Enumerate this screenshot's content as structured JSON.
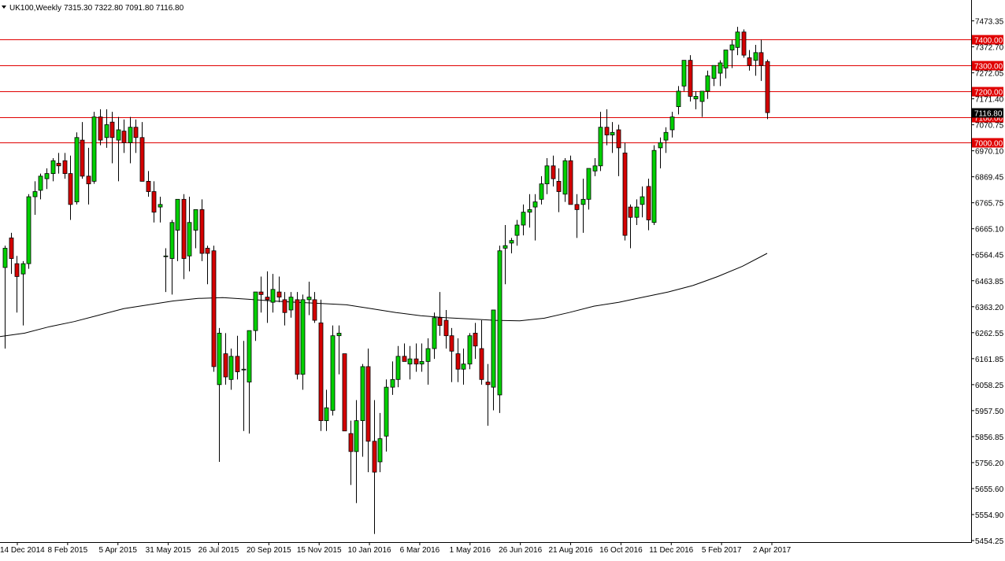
{
  "header": {
    "symbol_label": "UK100,Weekly",
    "ohlc_text": "7315.30 7322.80 7091.80 7116.80"
  },
  "colors": {
    "up_fill": "#00d000",
    "down_fill": "#d40000",
    "level_line": "#e00000",
    "moving_average": "#000000",
    "candle_outline": "#000000"
  },
  "chart_data": {
    "type": "candlestick",
    "title": "UK100,Weekly",
    "ylim": [
      5454.25,
      7522.3
    ],
    "grid": false,
    "price_ticks": [
      "7473.35",
      "7372.70",
      "7272.05",
      "7171.40",
      "7070.75",
      "6970.10",
      "6869.45",
      "6765.75",
      "6665.10",
      "6564.45",
      "6463.85",
      "6363.20",
      "6262.55",
      "6161.85",
      "6058.25",
      "5957.50",
      "5856.85",
      "5756.20",
      "5655.60",
      "5554.90",
      "5454.25"
    ],
    "date_ticks": [
      "14 Dec 2014",
      "8 Feb 2015",
      "5 Apr 2015",
      "31 May 2015",
      "26 Jul 2015",
      "20 Sep 2015",
      "15 Nov 2015",
      "10 Jan 2016",
      "6 Mar 2016",
      "1 May 2016",
      "26 Jun 2016",
      "21 Aug 2016",
      "16 Oct 2016",
      "11 Dec 2016",
      "5 Feb 2017",
      "2 Apr 2017"
    ],
    "levels": [
      {
        "label": "7400.00",
        "value": 7400
      },
      {
        "label": "7300.00",
        "value": 7300
      },
      {
        "label": "7200.00",
        "value": 7200
      },
      {
        "label": "7100.00",
        "value": 7100
      },
      {
        "label": "7000.00",
        "value": 7000
      }
    ],
    "current_price_label": "7116.80",
    "moving_average": [
      6247,
      6260,
      6285,
      6305,
      6330,
      6355,
      6370,
      6385,
      6395,
      6398,
      6392,
      6385,
      6380,
      6375,
      6370,
      6355,
      6340,
      6328,
      6320,
      6315,
      6310,
      6308,
      6318,
      6340,
      6365,
      6380,
      6400,
      6420,
      6445,
      6480,
      6520,
      6570
    ],
    "candles": [
      {
        "o": 6515,
        "h": 6600,
        "l": 6200,
        "c": 6590
      },
      {
        "o": 6630,
        "h": 6650,
        "l": 6490,
        "c": 6550
      },
      {
        "o": 6530,
        "h": 6560,
        "l": 6340,
        "c": 6480
      },
      {
        "o": 6490,
        "h": 6540,
        "l": 6290,
        "c": 6530
      },
      {
        "o": 6530,
        "h": 6800,
        "l": 6510,
        "c": 6790
      },
      {
        "o": 6790,
        "h": 6850,
        "l": 6720,
        "c": 6810
      },
      {
        "o": 6815,
        "h": 6880,
        "l": 6780,
        "c": 6870
      },
      {
        "o": 6860,
        "h": 6900,
        "l": 6820,
        "c": 6880
      },
      {
        "o": 6880,
        "h": 6940,
        "l": 6850,
        "c": 6930
      },
      {
        "o": 6920,
        "h": 6960,
        "l": 6880,
        "c": 6910
      },
      {
        "o": 6930,
        "h": 6960,
        "l": 6860,
        "c": 6880
      },
      {
        "o": 6880,
        "h": 6950,
        "l": 6700,
        "c": 6760
      },
      {
        "o": 6770,
        "h": 7040,
        "l": 6760,
        "c": 7020
      },
      {
        "o": 7010,
        "h": 7080,
        "l": 6860,
        "c": 6870
      },
      {
        "o": 6870,
        "h": 6980,
        "l": 6760,
        "c": 6840
      },
      {
        "o": 6850,
        "h": 7120,
        "l": 6840,
        "c": 7100
      },
      {
        "o": 7100,
        "h": 7130,
        "l": 6990,
        "c": 7010
      },
      {
        "o": 7020,
        "h": 7130,
        "l": 6980,
        "c": 7070
      },
      {
        "o": 7080,
        "h": 7120,
        "l": 6920,
        "c": 7020
      },
      {
        "o": 7010,
        "h": 7100,
        "l": 6850,
        "c": 7050
      },
      {
        "o": 7045,
        "h": 7090,
        "l": 6960,
        "c": 7000
      },
      {
        "o": 7000,
        "h": 7100,
        "l": 6920,
        "c": 7060
      },
      {
        "o": 7060,
        "h": 7090,
        "l": 6960,
        "c": 7020
      },
      {
        "o": 7020,
        "h": 7080,
        "l": 6850,
        "c": 6850
      },
      {
        "o": 6850,
        "h": 6890,
        "l": 6790,
        "c": 6810
      },
      {
        "o": 6810,
        "h": 6850,
        "l": 6690,
        "c": 6730
      },
      {
        "o": 6750,
        "h": 6790,
        "l": 6690,
        "c": 6760
      },
      {
        "o": 6560,
        "h": 6590,
        "l": 6420,
        "c": 6560
      },
      {
        "o": 6550,
        "h": 6700,
        "l": 6410,
        "c": 6690
      },
      {
        "o": 6660,
        "h": 6770,
        "l": 6540,
        "c": 6780
      },
      {
        "o": 6780,
        "h": 6800,
        "l": 6470,
        "c": 6550
      },
      {
        "o": 6560,
        "h": 6790,
        "l": 6500,
        "c": 6690
      },
      {
        "o": 6660,
        "h": 6740,
        "l": 6590,
        "c": 6740
      },
      {
        "o": 6740,
        "h": 6780,
        "l": 6540,
        "c": 6570
      },
      {
        "o": 6590,
        "h": 6600,
        "l": 6450,
        "c": 6570
      },
      {
        "o": 6580,
        "h": 6600,
        "l": 6110,
        "c": 6130
      },
      {
        "o": 6060,
        "h": 6280,
        "l": 5760,
        "c": 6260
      },
      {
        "o": 6180,
        "h": 6260,
        "l": 6060,
        "c": 6090
      },
      {
        "o": 6080,
        "h": 6200,
        "l": 6040,
        "c": 6170
      },
      {
        "o": 6170,
        "h": 6250,
        "l": 6080,
        "c": 6110
      },
      {
        "o": 6120,
        "h": 6230,
        "l": 5880,
        "c": 6120
      },
      {
        "o": 6070,
        "h": 6270,
        "l": 5870,
        "c": 6270
      },
      {
        "o": 6270,
        "h": 6420,
        "l": 6230,
        "c": 6420
      },
      {
        "o": 6420,
        "h": 6480,
        "l": 6340,
        "c": 6410
      },
      {
        "o": 6400,
        "h": 6500,
        "l": 6300,
        "c": 6390
      },
      {
        "o": 6380,
        "h": 6490,
        "l": 6340,
        "c": 6430
      },
      {
        "o": 6420,
        "h": 6480,
        "l": 6380,
        "c": 6400
      },
      {
        "o": 6390,
        "h": 6420,
        "l": 6290,
        "c": 6340
      },
      {
        "o": 6350,
        "h": 6420,
        "l": 6320,
        "c": 6400
      },
      {
        "o": 6390,
        "h": 6420,
        "l": 6080,
        "c": 6100
      },
      {
        "o": 6100,
        "h": 6410,
        "l": 6040,
        "c": 6390
      },
      {
        "o": 6390,
        "h": 6460,
        "l": 6330,
        "c": 6400
      },
      {
        "o": 6390,
        "h": 6420,
        "l": 6300,
        "c": 6310
      },
      {
        "o": 6300,
        "h": 6390,
        "l": 5880,
        "c": 5920
      },
      {
        "o": 5920,
        "h": 6040,
        "l": 5880,
        "c": 5970
      },
      {
        "o": 5960,
        "h": 6290,
        "l": 5940,
        "c": 6250
      },
      {
        "o": 6250,
        "h": 6290,
        "l": 6100,
        "c": 6260
      },
      {
        "o": 6180,
        "h": 6180,
        "l": 5880,
        "c": 5880
      },
      {
        "o": 5870,
        "h": 5920,
        "l": 5670,
        "c": 5800
      },
      {
        "o": 5800,
        "h": 6000,
        "l": 5600,
        "c": 5920
      },
      {
        "o": 5920,
        "h": 6140,
        "l": 5780,
        "c": 6130
      },
      {
        "o": 6130,
        "h": 6200,
        "l": 5720,
        "c": 5840
      },
      {
        "o": 5840,
        "h": 6000,
        "l": 5480,
        "c": 5720
      },
      {
        "o": 5760,
        "h": 5950,
        "l": 5720,
        "c": 5850
      },
      {
        "o": 5860,
        "h": 6080,
        "l": 5800,
        "c": 6050
      },
      {
        "o": 6050,
        "h": 6150,
        "l": 6020,
        "c": 6080
      },
      {
        "o": 6080,
        "h": 6210,
        "l": 6050,
        "c": 6170
      },
      {
        "o": 6170,
        "h": 6220,
        "l": 6150,
        "c": 6150
      },
      {
        "o": 6140,
        "h": 6210,
        "l": 6080,
        "c": 6160
      },
      {
        "o": 6160,
        "h": 6220,
        "l": 6110,
        "c": 6140
      },
      {
        "o": 6140,
        "h": 6220,
        "l": 6110,
        "c": 6150
      },
      {
        "o": 6150,
        "h": 6240,
        "l": 6060,
        "c": 6200
      },
      {
        "o": 6200,
        "h": 6340,
        "l": 6160,
        "c": 6320
      },
      {
        "o": 6320,
        "h": 6420,
        "l": 6250,
        "c": 6290
      },
      {
        "o": 6310,
        "h": 6350,
        "l": 6200,
        "c": 6250
      },
      {
        "o": 6250,
        "h": 6280,
        "l": 6070,
        "c": 6190
      },
      {
        "o": 6180,
        "h": 6240,
        "l": 6070,
        "c": 6120
      },
      {
        "o": 6120,
        "h": 6200,
        "l": 6060,
        "c": 6140
      },
      {
        "o": 6140,
        "h": 6260,
        "l": 6120,
        "c": 6250
      },
      {
        "o": 6260,
        "h": 6300,
        "l": 6160,
        "c": 6210
      },
      {
        "o": 6200,
        "h": 6310,
        "l": 6060,
        "c": 6080
      },
      {
        "o": 6070,
        "h": 6140,
        "l": 5900,
        "c": 6060
      },
      {
        "o": 6050,
        "h": 6330,
        "l": 5960,
        "c": 6350
      },
      {
        "o": 6020,
        "h": 6600,
        "l": 5950,
        "c": 6580
      },
      {
        "o": 6590,
        "h": 6680,
        "l": 6450,
        "c": 6600
      },
      {
        "o": 6610,
        "h": 6630,
        "l": 6570,
        "c": 6620
      },
      {
        "o": 6640,
        "h": 6700,
        "l": 6600,
        "c": 6680
      },
      {
        "o": 6680,
        "h": 6760,
        "l": 6640,
        "c": 6730
      },
      {
        "o": 6730,
        "h": 6800,
        "l": 6670,
        "c": 6740
      },
      {
        "o": 6750,
        "h": 6800,
        "l": 6620,
        "c": 6770
      },
      {
        "o": 6780,
        "h": 6870,
        "l": 6760,
        "c": 6840
      },
      {
        "o": 6840,
        "h": 6940,
        "l": 6800,
        "c": 6910
      },
      {
        "o": 6910,
        "h": 6950,
        "l": 6830,
        "c": 6860
      },
      {
        "o": 6850,
        "h": 6900,
        "l": 6730,
        "c": 6810
      },
      {
        "o": 6800,
        "h": 6940,
        "l": 6770,
        "c": 6930
      },
      {
        "o": 6930,
        "h": 6950,
        "l": 6760,
        "c": 6760
      },
      {
        "o": 6760,
        "h": 6800,
        "l": 6630,
        "c": 6740
      },
      {
        "o": 6760,
        "h": 6860,
        "l": 6650,
        "c": 6780
      },
      {
        "o": 6780,
        "h": 6900,
        "l": 6740,
        "c": 6900
      },
      {
        "o": 6890,
        "h": 6940,
        "l": 6870,
        "c": 6910
      },
      {
        "o": 6910,
        "h": 7120,
        "l": 6890,
        "c": 7060
      },
      {
        "o": 7060,
        "h": 7130,
        "l": 6990,
        "c": 7030
      },
      {
        "o": 7030,
        "h": 7080,
        "l": 6960,
        "c": 7040
      },
      {
        "o": 7050,
        "h": 7070,
        "l": 6870,
        "c": 6980
      },
      {
        "o": 6960,
        "h": 7000,
        "l": 6620,
        "c": 6640
      },
      {
        "o": 6750,
        "h": 6760,
        "l": 6590,
        "c": 6710
      },
      {
        "o": 6710,
        "h": 6780,
        "l": 6680,
        "c": 6750
      },
      {
        "o": 6760,
        "h": 6830,
        "l": 6710,
        "c": 6790
      },
      {
        "o": 6830,
        "h": 6860,
        "l": 6660,
        "c": 6700
      },
      {
        "o": 6690,
        "h": 6990,
        "l": 6680,
        "c": 6970
      },
      {
        "o": 6980,
        "h": 7020,
        "l": 6900,
        "c": 7000
      },
      {
        "o": 7010,
        "h": 7060,
        "l": 6960,
        "c": 7040
      },
      {
        "o": 7050,
        "h": 7120,
        "l": 7020,
        "c": 7100
      },
      {
        "o": 7140,
        "h": 7220,
        "l": 7110,
        "c": 7200
      },
      {
        "o": 7220,
        "h": 7320,
        "l": 7200,
        "c": 7320
      },
      {
        "o": 7320,
        "h": 7340,
        "l": 7160,
        "c": 7180
      },
      {
        "o": 7170,
        "h": 7200,
        "l": 7130,
        "c": 7180
      },
      {
        "o": 7160,
        "h": 7200,
        "l": 7100,
        "c": 7200
      },
      {
        "o": 7200,
        "h": 7280,
        "l": 7170,
        "c": 7260
      },
      {
        "o": 7250,
        "h": 7300,
        "l": 7220,
        "c": 7300
      },
      {
        "o": 7270,
        "h": 7320,
        "l": 7220,
        "c": 7310
      },
      {
        "o": 7290,
        "h": 7360,
        "l": 7250,
        "c": 7360
      },
      {
        "o": 7360,
        "h": 7400,
        "l": 7290,
        "c": 7380
      },
      {
        "o": 7370,
        "h": 7450,
        "l": 7340,
        "c": 7430
      },
      {
        "o": 7430,
        "h": 7440,
        "l": 7330,
        "c": 7340
      },
      {
        "o": 7330,
        "h": 7360,
        "l": 7280,
        "c": 7300
      },
      {
        "o": 7320,
        "h": 7380,
        "l": 7260,
        "c": 7350
      },
      {
        "o": 7350,
        "h": 7400,
        "l": 7240,
        "c": 7300
      },
      {
        "o": 7315.3,
        "h": 7322.8,
        "l": 7091.8,
        "c": 7116.8
      }
    ]
  }
}
